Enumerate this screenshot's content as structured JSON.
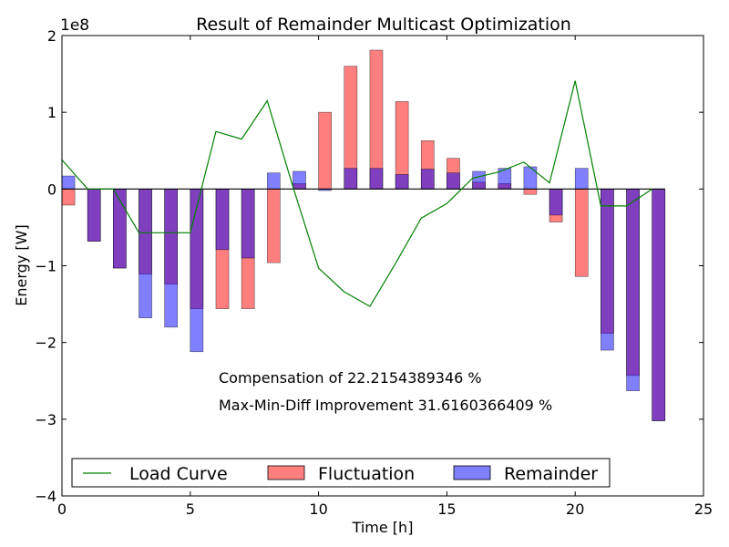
{
  "chart_data": {
    "type": "bar",
    "title": "Result of Remainder Multicast Optimization",
    "xlabel": "Time [h]",
    "ylabel": "Energy [W]",
    "y_multiplier_label": "1e8",
    "xlim": [
      0,
      25
    ],
    "ylim": [
      -4,
      2
    ],
    "x_ticks": [
      0,
      5,
      10,
      15,
      20,
      25
    ],
    "y_ticks": [
      -4,
      -3,
      -2,
      -1,
      0,
      1,
      2
    ],
    "x_tick_labels": [
      "0",
      "5",
      "10",
      "15",
      "20",
      "25"
    ],
    "y_tick_labels": [
      "−4",
      "−3",
      "−2",
      "−1",
      "0",
      "1",
      "2"
    ],
    "bar_x": [
      0,
      1,
      2,
      3,
      4,
      5,
      6,
      7,
      8,
      9,
      10,
      11,
      12,
      13,
      14,
      15,
      16,
      17,
      18,
      19,
      20,
      21,
      22,
      23
    ],
    "bar_width": 0.5,
    "series": [
      {
        "name": "Fluctuation",
        "kind": "bar",
        "color": "#ff0000",
        "values": [
          -0.21,
          -0.68,
          -1.03,
          -1.11,
          -1.24,
          -1.56,
          -1.56,
          -1.56,
          -0.96,
          0.07,
          1.0,
          1.6,
          1.81,
          1.14,
          0.63,
          0.4,
          0.09,
          0.07,
          -0.07,
          -0.43,
          -1.14,
          -1.88,
          -2.43,
          -3.02
        ]
      },
      {
        "name": "Remainder",
        "kind": "bar",
        "color": "#0000ff",
        "values": [
          0.17,
          -0.68,
          -1.03,
          -1.68,
          -1.8,
          -2.12,
          -0.79,
          -0.9,
          0.21,
          0.23,
          -0.02,
          0.27,
          0.27,
          0.19,
          0.26,
          0.21,
          0.23,
          0.27,
          0.29,
          -0.34,
          0.27,
          -2.1,
          -2.63,
          -3.02
        ]
      },
      {
        "name": "Load Curve",
        "kind": "line",
        "color": "#008000",
        "x": [
          0,
          1,
          2,
          3,
          4,
          5,
          6,
          7,
          8,
          9,
          10,
          11,
          12,
          13,
          14,
          15,
          16,
          17,
          18,
          19,
          20,
          21,
          22,
          23
        ],
        "values": [
          0.38,
          0.0,
          0.0,
          -0.57,
          -0.57,
          -0.57,
          0.75,
          0.65,
          1.15,
          0.03,
          -1.03,
          -1.34,
          -1.53,
          -0.97,
          -0.38,
          -0.19,
          0.14,
          0.22,
          0.35,
          0.08,
          1.41,
          -0.22,
          -0.22,
          0.0
        ]
      }
    ],
    "annotations": [
      "Compensation of 22.2154389346 %",
      "Max-Min-Diff Improvement 31.6160366409 %"
    ],
    "legend": {
      "position": "bottom",
      "entries": [
        "Load Curve",
        "Fluctuation",
        "Remainder"
      ]
    }
  }
}
